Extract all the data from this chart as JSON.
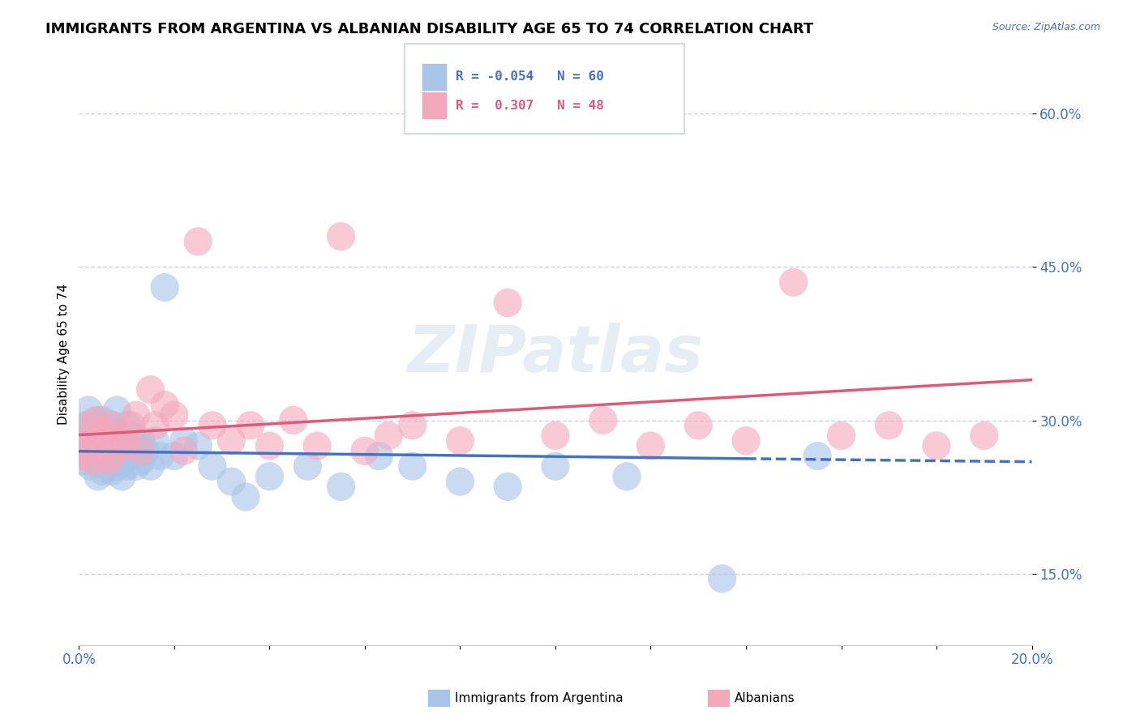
{
  "title": "IMMIGRANTS FROM ARGENTINA VS ALBANIAN DISABILITY AGE 65 TO 74 CORRELATION CHART",
  "source": "Source: ZipAtlas.com",
  "ylabel": "Disability Age 65 to 74",
  "xlim": [
    0.0,
    0.2
  ],
  "ylim": [
    0.08,
    0.65
  ],
  "yticks": [
    0.15,
    0.3,
    0.45,
    0.6
  ],
  "ytick_labels": [
    "15.0%",
    "30.0%",
    "45.0%",
    "60.0%"
  ],
  "xticks": [
    0.0,
    0.02,
    0.04,
    0.06,
    0.08,
    0.1,
    0.12,
    0.14,
    0.16,
    0.18,
    0.2
  ],
  "xtick_labels": [
    "0.0%",
    "",
    "",
    "",
    "",
    "",
    "",
    "",
    "",
    "",
    "20.0%"
  ],
  "argentina_R": -0.054,
  "argentina_N": 60,
  "albania_R": 0.307,
  "albania_N": 48,
  "argentina_color": "#a8c4e8",
  "albania_color": "#f4a8bc",
  "argentina_line_color": "#4472c4",
  "albania_line_color": "#e05a78",
  "background_color": "#ffffff",
  "grid_color": "#c8d4e8",
  "watermark": "ZIPatlas",
  "title_fontsize": 13,
  "label_fontsize": 11,
  "tick_fontsize": 12,
  "argentina_x": [
    0.0005,
    0.001,
    0.0015,
    0.002,
    0.002,
    0.0025,
    0.003,
    0.003,
    0.003,
    0.0035,
    0.004,
    0.004,
    0.004,
    0.004,
    0.005,
    0.005,
    0.005,
    0.005,
    0.006,
    0.006,
    0.006,
    0.007,
    0.007,
    0.007,
    0.008,
    0.008,
    0.008,
    0.009,
    0.009,
    0.01,
    0.01,
    0.01,
    0.011,
    0.011,
    0.012,
    0.012,
    0.013,
    0.013,
    0.014,
    0.015,
    0.016,
    0.017,
    0.018,
    0.02,
    0.022,
    0.025,
    0.028,
    0.032,
    0.035,
    0.04,
    0.048,
    0.055,
    0.063,
    0.07,
    0.08,
    0.09,
    0.1,
    0.115,
    0.135,
    0.155
  ],
  "argentina_y": [
    0.26,
    0.285,
    0.295,
    0.27,
    0.31,
    0.255,
    0.265,
    0.29,
    0.275,
    0.3,
    0.245,
    0.26,
    0.28,
    0.295,
    0.25,
    0.265,
    0.285,
    0.3,
    0.255,
    0.27,
    0.29,
    0.25,
    0.275,
    0.295,
    0.255,
    0.275,
    0.31,
    0.245,
    0.28,
    0.255,
    0.27,
    0.295,
    0.265,
    0.285,
    0.255,
    0.275,
    0.26,
    0.28,
    0.27,
    0.255,
    0.28,
    0.265,
    0.43,
    0.265,
    0.28,
    0.275,
    0.255,
    0.24,
    0.225,
    0.245,
    0.255,
    0.235,
    0.265,
    0.255,
    0.24,
    0.235,
    0.255,
    0.245,
    0.145,
    0.265
  ],
  "albania_x": [
    0.0005,
    0.001,
    0.002,
    0.002,
    0.003,
    0.003,
    0.004,
    0.004,
    0.005,
    0.005,
    0.006,
    0.006,
    0.007,
    0.007,
    0.008,
    0.009,
    0.01,
    0.011,
    0.012,
    0.013,
    0.015,
    0.016,
    0.018,
    0.02,
    0.022,
    0.025,
    0.028,
    0.032,
    0.036,
    0.04,
    0.045,
    0.05,
    0.055,
    0.06,
    0.065,
    0.07,
    0.08,
    0.09,
    0.1,
    0.11,
    0.12,
    0.13,
    0.14,
    0.15,
    0.16,
    0.17,
    0.18,
    0.19
  ],
  "albania_y": [
    0.265,
    0.275,
    0.27,
    0.295,
    0.26,
    0.285,
    0.27,
    0.3,
    0.275,
    0.29,
    0.26,
    0.285,
    0.265,
    0.295,
    0.275,
    0.285,
    0.275,
    0.295,
    0.305,
    0.27,
    0.33,
    0.295,
    0.315,
    0.305,
    0.27,
    0.475,
    0.295,
    0.28,
    0.295,
    0.275,
    0.3,
    0.275,
    0.48,
    0.27,
    0.285,
    0.295,
    0.28,
    0.415,
    0.285,
    0.3,
    0.275,
    0.295,
    0.28,
    0.435,
    0.285,
    0.295,
    0.275,
    0.285
  ],
  "trend_x_solid_end": 0.14,
  "trend_x_end": 0.2
}
